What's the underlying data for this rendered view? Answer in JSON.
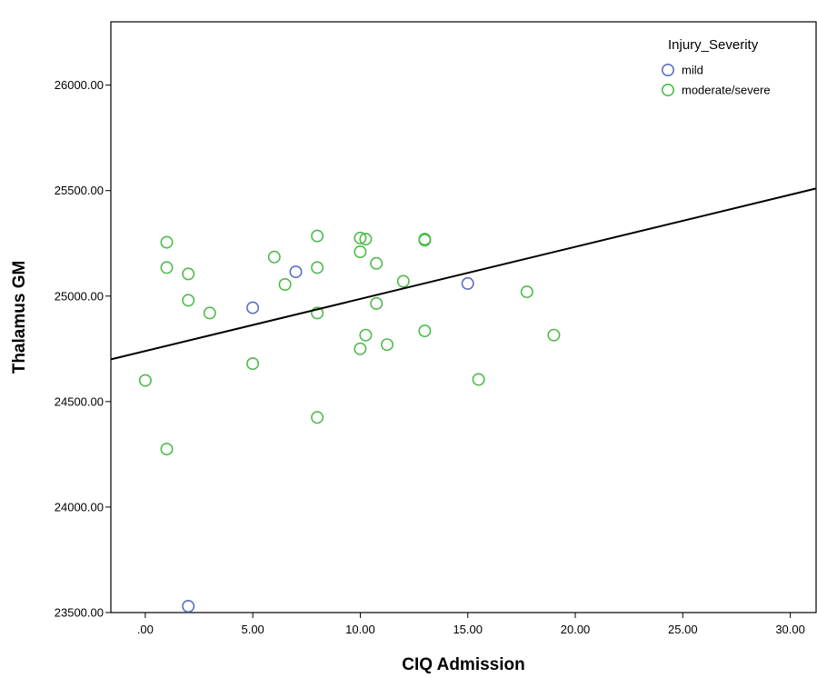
{
  "chart_data": {
    "type": "scatter",
    "xlabel": "CIQ Admission",
    "ylabel": "Thalamus GM",
    "xlim": [
      -1.6,
      31.2
    ],
    "ylim": [
      23500,
      26300
    ],
    "x_ticks": [
      0,
      5,
      10,
      15,
      20,
      25,
      30
    ],
    "x_tick_labels": [
      ".00",
      "5.00",
      "10.00",
      "15.00",
      "20.00",
      "25.00",
      "30.00"
    ],
    "y_ticks": [
      23500,
      24000,
      24500,
      25000,
      25500,
      26000
    ],
    "y_tick_labels": [
      "23500.00",
      "24000.00",
      "24500.00",
      "25000.00",
      "25500.00",
      "26000.00"
    ],
    "grid": false,
    "legend": {
      "title": "Injury_Severity",
      "position": "top-right",
      "entries": [
        "mild",
        "moderate/severe"
      ]
    },
    "series": [
      {
        "name": "mild",
        "color": "#5a6fc0",
        "marker": "open-circle",
        "points": [
          {
            "x": 2.0,
            "y": 23530
          },
          {
            "x": 5.0,
            "y": 24945
          },
          {
            "x": 7.0,
            "y": 25115
          },
          {
            "x": 15.0,
            "y": 25060
          }
        ]
      },
      {
        "name": "moderate/severe",
        "color": "#4dbb4a",
        "marker": "open-circle",
        "points": [
          {
            "x": 0.0,
            "y": 24600
          },
          {
            "x": 1.0,
            "y": 25255
          },
          {
            "x": 1.0,
            "y": 25135
          },
          {
            "x": 1.0,
            "y": 24275
          },
          {
            "x": 2.0,
            "y": 25105
          },
          {
            "x": 2.0,
            "y": 24980
          },
          {
            "x": 3.0,
            "y": 24920
          },
          {
            "x": 5.0,
            "y": 24680
          },
          {
            "x": 6.0,
            "y": 25185
          },
          {
            "x": 6.5,
            "y": 25055
          },
          {
            "x": 8.0,
            "y": 25285
          },
          {
            "x": 8.0,
            "y": 25135
          },
          {
            "x": 8.0,
            "y": 24920
          },
          {
            "x": 8.0,
            "y": 24425
          },
          {
            "x": 10.0,
            "y": 25275
          },
          {
            "x": 10.25,
            "y": 25270
          },
          {
            "x": 10.0,
            "y": 25210
          },
          {
            "x": 10.75,
            "y": 25155
          },
          {
            "x": 10.75,
            "y": 24965
          },
          {
            "x": 10.25,
            "y": 24815
          },
          {
            "x": 10.0,
            "y": 24750
          },
          {
            "x": 11.25,
            "y": 24770
          },
          {
            "x": 12.0,
            "y": 25070
          },
          {
            "x": 13.0,
            "y": 25270
          },
          {
            "x": 13.0,
            "y": 25265
          },
          {
            "x": 13.0,
            "y": 24835
          },
          {
            "x": 15.5,
            "y": 24605
          },
          {
            "x": 17.75,
            "y": 25020
          },
          {
            "x": 19.0,
            "y": 24815
          }
        ]
      }
    ],
    "fit_line": {
      "color": "#000000",
      "points": [
        {
          "x": -1.6,
          "y": 24700
        },
        {
          "x": 31.2,
          "y": 25510
        }
      ]
    }
  }
}
